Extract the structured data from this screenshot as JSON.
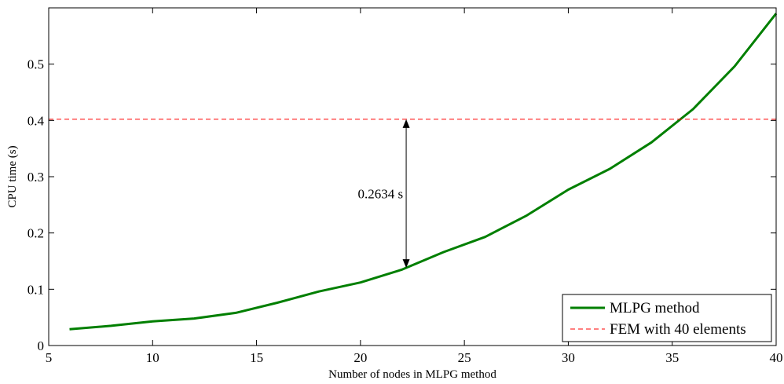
{
  "chart_data": {
    "type": "line",
    "title": "",
    "xlabel": "Number of nodes in MLPG method",
    "ylabel": "CPU time (s)",
    "xlim": [
      5,
      40
    ],
    "ylim": [
      0,
      0.6
    ],
    "xticks": [
      "5",
      "10",
      "15",
      "20",
      "25",
      "30",
      "35",
      "40"
    ],
    "yticks": [
      "0",
      "0.1",
      "0.2",
      "0.3",
      "0.4",
      "0.5"
    ],
    "grid": false,
    "legend_position": "bottom-right",
    "series": [
      {
        "name": "MLPG method",
        "style": "solid",
        "color": "#007F00",
        "x": [
          6,
          8,
          10,
          12,
          14,
          16,
          18,
          20,
          22,
          24,
          26,
          28,
          30,
          32,
          34,
          36,
          38,
          40
        ],
        "y": [
          0.029,
          0.035,
          0.043,
          0.048,
          0.058,
          0.076,
          0.096,
          0.112,
          0.135,
          0.166,
          0.193,
          0.231,
          0.277,
          0.314,
          0.361,
          0.42,
          0.496,
          0.59
        ]
      },
      {
        "name": "FEM with 40 elements",
        "style": "dashed",
        "color": "#FF0000",
        "x": [
          5,
          40
        ],
        "y": [
          0.402,
          0.402
        ]
      }
    ],
    "annotations": [
      {
        "text": "0.2634 s",
        "x": 22.2,
        "y_from": 0.138,
        "y_to": 0.402
      }
    ]
  }
}
